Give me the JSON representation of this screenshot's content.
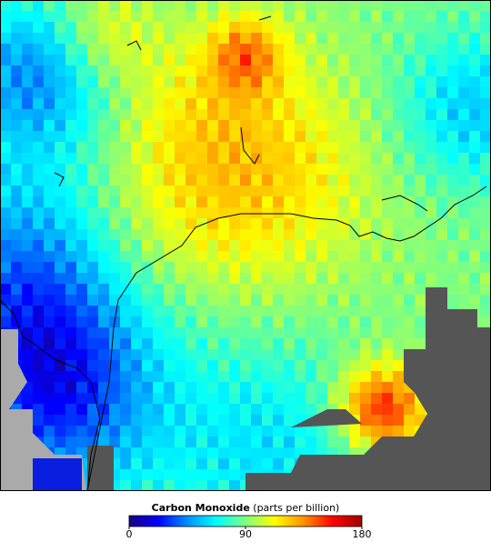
{
  "map": {
    "legend": {
      "title": "Carbon Monoxide",
      "unit": "(parts per billion)",
      "range": [
        0,
        180
      ],
      "ticks": [
        0,
        90,
        180
      ],
      "colors": [
        "#1a0080",
        "#0000ff",
        "#0090ff",
        "#00ffff",
        "#80ff80",
        "#ffff00",
        "#ff9000",
        "#ff0000",
        "#a00000"
      ]
    }
  }
}
